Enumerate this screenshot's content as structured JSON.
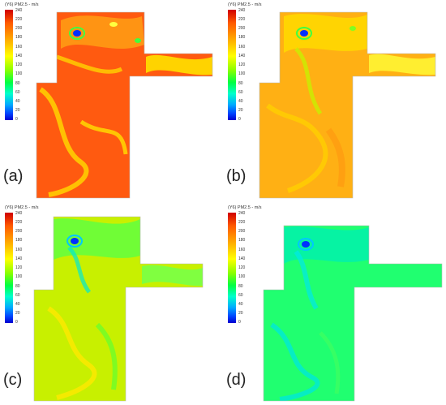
{
  "colorbar": {
    "title": "(Y6) PM2.5 - m/s",
    "ticks": [
      "240",
      "220",
      "200",
      "180",
      "160",
      "140",
      "120",
      "100",
      "80",
      "60",
      "40",
      "20",
      "0"
    ]
  },
  "panels": [
    {
      "label": "(a)"
    },
    {
      "label": "(b)"
    },
    {
      "label": "(c)"
    },
    {
      "label": "(d)"
    }
  ],
  "colors": {
    "a_base": "#ff5a10",
    "a_swirl": "#ffd300",
    "b_base": "#ffb014",
    "b_swirl": "#ffe800",
    "c_base": "#c8f000",
    "c_swirl": "#60ff20",
    "d_base": "#20ff70",
    "d_swirl": "#00e8d8"
  }
}
